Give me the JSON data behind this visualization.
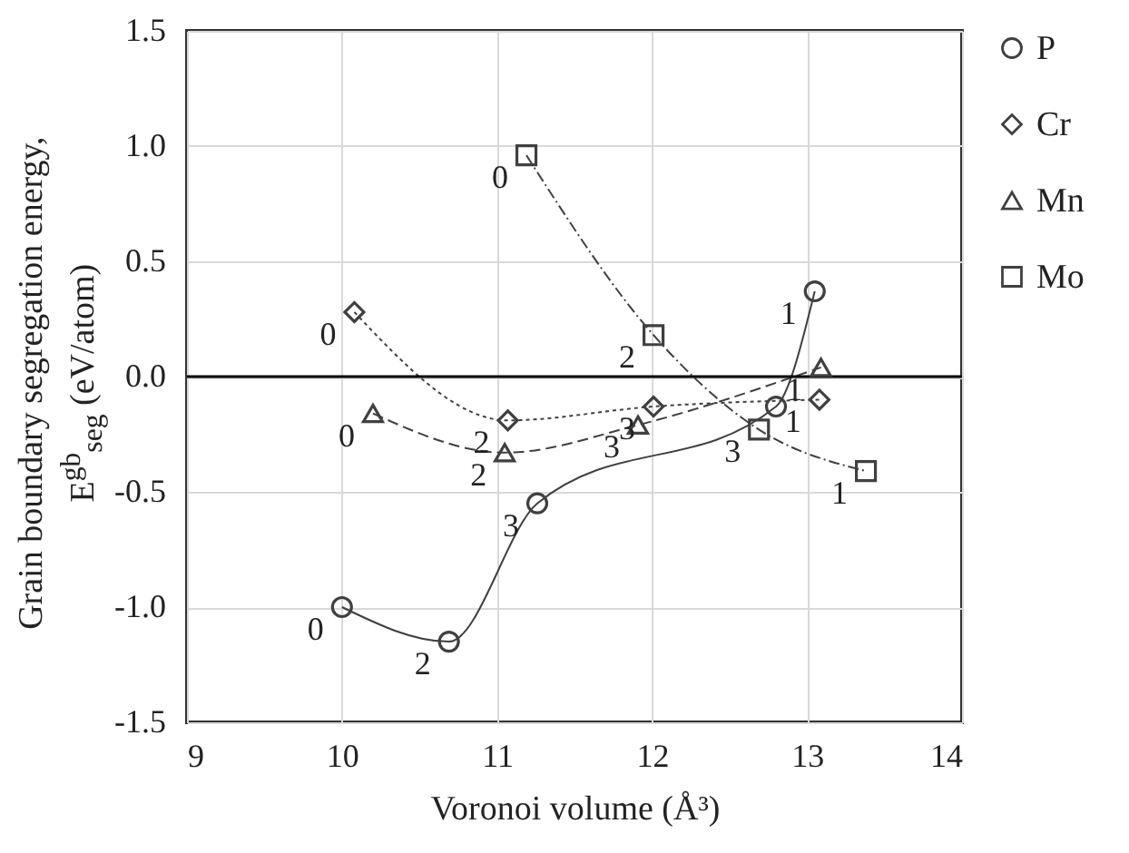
{
  "chart_data": {
    "type": "line",
    "xlabel": "Voronoi volume (Å³)",
    "ylabel": "Grain boundary segregation energy, E$^{gb}$$_{seg}$ (eV/atom)",
    "xlim": [
      9,
      14
    ],
    "xticks": [
      9,
      10,
      11,
      12,
      13,
      14
    ],
    "ylim": [
      -1.5,
      1.5
    ],
    "yticks": [
      {
        "value": -1.5,
        "label": "-1.5"
      },
      {
        "value": -1,
        "label": "-1.0"
      },
      {
        "value": -0.5,
        "label": "-0.5"
      },
      {
        "value": 0,
        "label": "0.0"
      },
      {
        "value": 0.5,
        "label": "0.5"
      },
      {
        "value": 1,
        "label": "1.0"
      },
      {
        "value": 1.5,
        "label": "1.5"
      }
    ],
    "grid": true,
    "legend": "right",
    "series": [
      {
        "name": "P",
        "color": "#404040",
        "marker": "circle",
        "line_style": "solid",
        "x": [
          10.0,
          10.69,
          11.26,
          12.8,
          13.05
        ],
        "values": [
          -1.0,
          -1.15,
          -0.55,
          -0.13,
          0.37
        ]
      },
      {
        "name": "Cr",
        "color": "#404040",
        "marker": "diamond",
        "line_style": "dotted",
        "x": [
          10.08,
          11.07,
          12.01,
          13.08
        ],
        "values": [
          0.28,
          -0.19,
          -0.13,
          -0.1
        ]
      },
      {
        "name": "Mn",
        "color": "#404040",
        "marker": "triangle",
        "line_style": "dashed",
        "x": [
          10.2,
          11.05,
          11.91,
          13.09
        ],
        "values": [
          -0.16,
          -0.33,
          -0.21,
          0.04
        ]
      },
      {
        "name": "Mo",
        "color": "#404040",
        "marker": "square",
        "line_style": "dashdot",
        "x": [
          11.19,
          12.01,
          12.69,
          13.38
        ],
        "values": [
          0.96,
          0.18,
          -0.23,
          -0.41
        ]
      }
    ],
    "ref_lines": [
      {
        "axis": "y",
        "value": 0,
        "color": "#000000"
      }
    ],
    "annotations": [
      {
        "text": "0",
        "x": 10.0,
        "y": -1.0
      },
      {
        "text": "2",
        "x": 10.69,
        "y": -1.15
      },
      {
        "text": "3",
        "x": 11.26,
        "y": -0.55
      },
      {
        "text": "1",
        "x": 13.05,
        "y": 0.37
      },
      {
        "text": "0",
        "x": 10.08,
        "y": 0.28
      },
      {
        "text": "2",
        "x": 11.07,
        "y": -0.19
      },
      {
        "text": "3",
        "x": 12.01,
        "y": -0.13
      },
      {
        "text": "1",
        "x": 13.08,
        "y": -0.1
      },
      {
        "text": "0",
        "x": 10.2,
        "y": -0.16
      },
      {
        "text": "2",
        "x": 11.05,
        "y": -0.33
      },
      {
        "text": "3",
        "x": 11.91,
        "y": -0.21
      },
      {
        "text": "1",
        "x": 13.09,
        "y": 0.04
      },
      {
        "text": "0",
        "x": 11.19,
        "y": 0.96
      },
      {
        "text": "2",
        "x": 12.01,
        "y": 0.18
      },
      {
        "text": "3",
        "x": 12.69,
        "y": -0.23
      },
      {
        "text": "1",
        "x": 13.38,
        "y": -0.41
      }
    ]
  }
}
